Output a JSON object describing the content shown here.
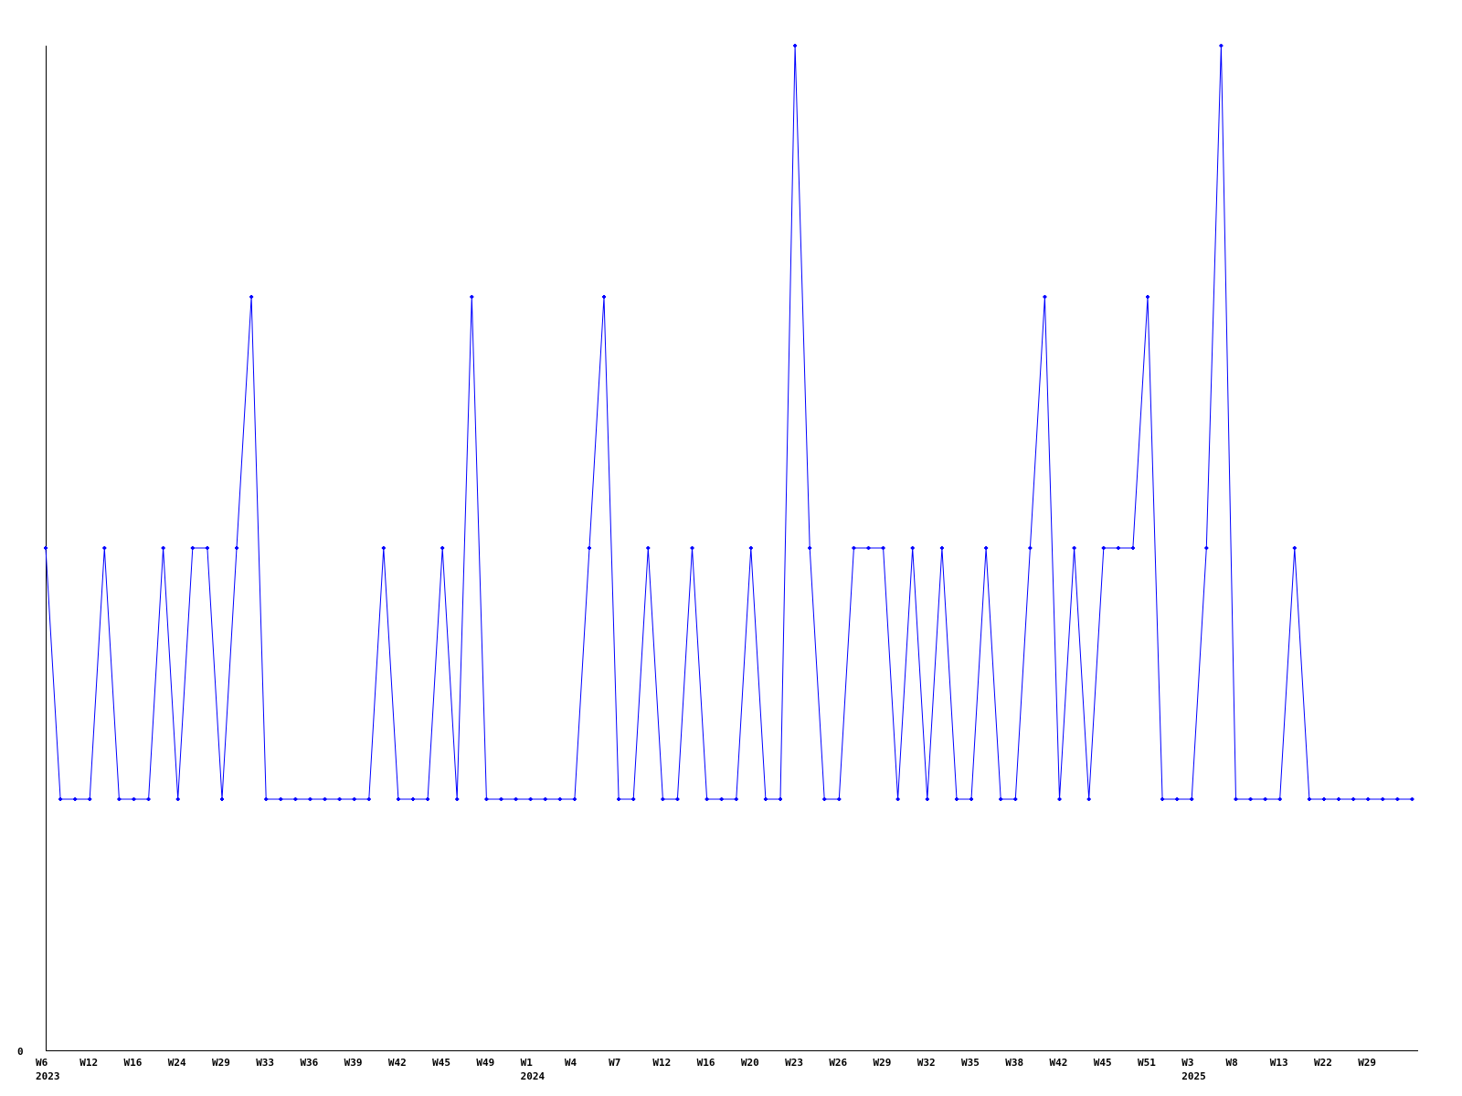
{
  "chart_data": {
    "type": "line",
    "title": "",
    "xlabel": "",
    "ylabel": "",
    "ylim": [
      0,
      4
    ],
    "y_tick_labels": [
      "0"
    ],
    "grid": false,
    "x_tick_labels": [
      "W6",
      "W12",
      "W16",
      "W24",
      "W29",
      "W33",
      "W36",
      "W39",
      "W42",
      "W45",
      "W49",
      "W1",
      "W4",
      "W7",
      "W12",
      "W16",
      "W20",
      "W23",
      "W26",
      "W29",
      "W32",
      "W35",
      "W38",
      "W42",
      "W45",
      "W51",
      "W3",
      "W8",
      "W13",
      "W22",
      "W29"
    ],
    "x_tick_every": 3,
    "year_labels": [
      {
        "label": "2023",
        "index": 0
      },
      {
        "label": "2024",
        "index": 33
      },
      {
        "label": "2025",
        "index": 78
      }
    ],
    "series": [
      {
        "color": "#0000ff",
        "values": [
          2,
          1,
          1,
          1,
          2,
          1,
          1,
          1,
          2,
          1,
          2,
          2,
          1,
          2,
          3,
          1,
          1,
          1,
          1,
          1,
          1,
          1,
          1,
          2,
          1,
          1,
          1,
          2,
          1,
          3,
          1,
          1,
          1,
          1,
          1,
          1,
          1,
          2,
          3,
          1,
          1,
          2,
          1,
          1,
          2,
          1,
          1,
          1,
          2,
          1,
          1,
          4,
          2,
          1,
          1,
          2,
          2,
          2,
          1,
          2,
          1,
          2,
          1,
          1,
          2,
          1,
          1,
          2,
          3,
          1,
          2,
          1,
          2,
          2,
          2,
          3,
          1,
          1,
          1,
          2,
          4,
          1,
          1,
          1,
          1,
          2,
          1,
          1,
          1,
          1,
          1,
          1,
          1,
          1
        ]
      }
    ]
  }
}
